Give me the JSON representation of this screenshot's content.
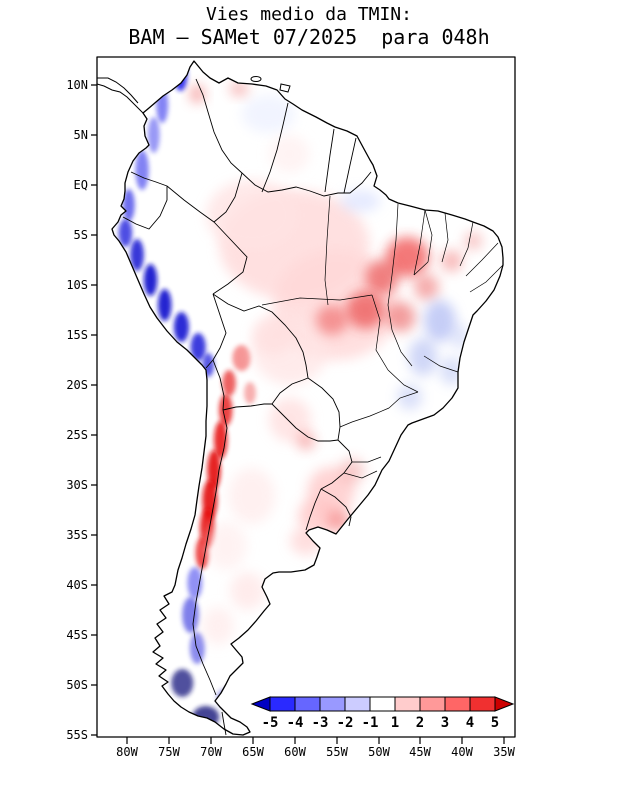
{
  "title": {
    "line1": "Vies medio da TMIN:",
    "line2": "BAM – SAMet 07/2025  para 048h"
  },
  "axes": {
    "lat_labels": [
      "10N",
      "5N",
      "EQ",
      "5S",
      "10S",
      "15S",
      "20S",
      "25S",
      "30S",
      "35S",
      "40S",
      "45S",
      "50S",
      "55S"
    ],
    "lon_labels": [
      "80W",
      "75W",
      "70W",
      "65W",
      "60W",
      "55W",
      "50W",
      "45W",
      "40W",
      "35W"
    ]
  },
  "colorbar": {
    "labels": [
      "-5",
      "-4",
      "-3",
      "-2",
      "-1",
      "1",
      "2",
      "3",
      "4",
      "5"
    ],
    "colors": [
      "#0000c3",
      "#2a2aff",
      "#6666ff",
      "#9999ff",
      "#ccccff",
      "#ffffff",
      "#ffcccc",
      "#ff9999",
      "#ff6666",
      "#f03030",
      "#cc0000"
    ]
  },
  "chart_data": {
    "type": "heatmap",
    "title": "Vies medio da TMIN:",
    "subtitle": "BAM – SAMet 07/2025  para 048h",
    "variable": "Vies medio da TMIN (mean TMIN bias)",
    "model": "BAM",
    "reference": "SAMet",
    "period": "07/2025",
    "forecast_hour": "048h",
    "region": "South America",
    "lon_range": [
      -83.6,
      -33.6
    ],
    "lat_range": [
      12.8,
      -55.2
    ],
    "x_ticks": [
      "80W",
      "75W",
      "70W",
      "65W",
      "60W",
      "55W",
      "50W",
      "45W",
      "40W",
      "35W"
    ],
    "y_ticks": [
      "10N",
      "5N",
      "EQ",
      "5S",
      "10S",
      "15S",
      "20S",
      "25S",
      "30S",
      "35S",
      "40S",
      "45S",
      "50S",
      "55S"
    ],
    "colorbar_levels": [
      -5,
      -4,
      -3,
      -2,
      -1,
      1,
      2,
      3,
      4,
      5
    ],
    "grid": false,
    "legend_position": "bottom-right inside plot",
    "summary_regions": [
      {
        "area": "Pacific coast / western Andes of Colombia-Ecuador-Peru (10N-18S)",
        "bias": "strong negative, -3 to below -5"
      },
      {
        "area": "Andes of northern-central Chile and western Argentina (18S-38S)",
        "bias": "strong positive, +3 to above +5"
      },
      {
        "area": "southern Andes and Patagonian fjords (38S-55S)",
        "bias": "negative, -2 to below -5"
      },
      {
        "area": "Amazon basin and central Brazil",
        "bias": "weak positive, 0 to +2"
      },
      {
        "area": "Maranhao/Tocantins and central-west Brazil patches",
        "bias": "positive, +2 to +4"
      },
      {
        "area": "eastern Brazil (Bahia / Minas Gerais) patches",
        "bias": "weak negative, -1 to -3"
      },
      {
        "area": "Uruguay and far southern Brazil",
        "bias": "positive, +1 to +3"
      },
      {
        "area": "Argentine lowlands",
        "bias": "near zero, 0 to +1"
      },
      {
        "area": "Venezuela and Guianas",
        "bias": "near zero with mixed weak patches"
      }
    ],
    "bias_field_blobs": [
      {
        "lon": -73.6,
        "lat": 11.0,
        "rx": 0.8,
        "ry": 1.6,
        "color": "#2222ee",
        "op": 0.9,
        "sharp": true
      },
      {
        "lon": -75.8,
        "lat": 8.0,
        "rx": 0.7,
        "ry": 1.8,
        "color": "#4343f0",
        "op": 0.65,
        "sharp": true
      },
      {
        "lon": -76.8,
        "lat": 5.0,
        "rx": 0.7,
        "ry": 1.8,
        "color": "#5555f0",
        "op": 0.6,
        "sharp": true
      },
      {
        "lon": -78.2,
        "lat": 1.5,
        "rx": 0.8,
        "ry": 2.0,
        "color": "#4040ee",
        "op": 0.65,
        "sharp": true
      },
      {
        "lon": -79.8,
        "lat": -2.0,
        "rx": 0.7,
        "ry": 1.6,
        "color": "#3030e6",
        "op": 0.7,
        "sharp": true
      },
      {
        "lon": -80.2,
        "lat": -4.8,
        "rx": 0.8,
        "ry": 1.4,
        "color": "#2020dd",
        "op": 0.8,
        "sharp": true
      },
      {
        "lon": -78.8,
        "lat": -7.0,
        "rx": 0.8,
        "ry": 1.6,
        "color": "#1515d2",
        "op": 0.85,
        "sharp": true
      },
      {
        "lon": -77.2,
        "lat": -9.5,
        "rx": 0.8,
        "ry": 1.6,
        "color": "#1111cc",
        "op": 0.9,
        "sharp": true
      },
      {
        "lon": -75.5,
        "lat": -12.0,
        "rx": 0.8,
        "ry": 1.6,
        "color": "#1111cc",
        "op": 0.9,
        "sharp": true
      },
      {
        "lon": -73.5,
        "lat": -14.2,
        "rx": 0.9,
        "ry": 1.5,
        "color": "#1515d2",
        "op": 0.9,
        "sharp": true
      },
      {
        "lon": -71.5,
        "lat": -16.2,
        "rx": 0.9,
        "ry": 1.4,
        "color": "#1a1ad8",
        "op": 0.85,
        "sharp": true
      },
      {
        "lon": -70.3,
        "lat": -18.0,
        "rx": 0.7,
        "ry": 1.2,
        "color": "#2222dd",
        "op": 0.75,
        "sharp": true
      },
      {
        "lon": -67.8,
        "lat": -19.8,
        "rx": 0.8,
        "ry": 1.3,
        "color": "#e62222",
        "op": 0.7,
        "sharp": true
      },
      {
        "lon": -68.2,
        "lat": -22.5,
        "rx": 0.8,
        "ry": 1.6,
        "color": "#e61515",
        "op": 0.8,
        "sharp": true
      },
      {
        "lon": -68.8,
        "lat": -25.5,
        "rx": 0.8,
        "ry": 1.9,
        "color": "#e60f0f",
        "op": 0.85,
        "sharp": true
      },
      {
        "lon": -69.6,
        "lat": -28.5,
        "rx": 0.8,
        "ry": 2.0,
        "color": "#e30a0a",
        "op": 0.9,
        "sharp": true
      },
      {
        "lon": -70.1,
        "lat": -31.5,
        "rx": 0.9,
        "ry": 2.0,
        "color": "#e30a0a",
        "op": 0.9,
        "sharp": true
      },
      {
        "lon": -70.4,
        "lat": -34.3,
        "rx": 0.9,
        "ry": 2.0,
        "color": "#e60d0d",
        "op": 0.88,
        "sharp": true
      },
      {
        "lon": -71.0,
        "lat": -36.8,
        "rx": 0.8,
        "ry": 1.6,
        "color": "#e81818",
        "op": 0.8,
        "sharp": true
      },
      {
        "lon": -66.3,
        "lat": -17.3,
        "rx": 1.1,
        "ry": 1.3,
        "color": "#ee4040",
        "op": 0.55,
        "sharp": true
      },
      {
        "lon": -65.3,
        "lat": -20.8,
        "rx": 0.7,
        "ry": 1.1,
        "color": "#ee5050",
        "op": 0.45,
        "sharp": true
      },
      {
        "lon": -71.9,
        "lat": -39.8,
        "rx": 0.9,
        "ry": 1.6,
        "color": "#4848ee",
        "op": 0.6,
        "sharp": true
      },
      {
        "lon": -72.4,
        "lat": -43.0,
        "rx": 1.0,
        "ry": 1.8,
        "color": "#3a3ae0",
        "op": 0.65,
        "sharp": true
      },
      {
        "lon": -71.6,
        "lat": -46.3,
        "rx": 0.9,
        "ry": 1.6,
        "color": "#4040e2",
        "op": 0.6,
        "sharp": true
      },
      {
        "lon": -73.4,
        "lat": -49.8,
        "rx": 1.3,
        "ry": 1.4,
        "color": "#16167e",
        "op": 0.75,
        "sharp": true
      },
      {
        "lon": -70.6,
        "lat": -53.2,
        "rx": 1.6,
        "ry": 1.1,
        "color": "#14147a",
        "op": 0.8,
        "sharp": true
      },
      {
        "lon": -68.4,
        "lat": -51.3,
        "rx": 0.9,
        "ry": 0.9,
        "color": "#3333cc",
        "op": 0.45,
        "sharp": true
      },
      {
        "lon": -60.0,
        "lat": -6.0,
        "rx": 9.0,
        "ry": 5.5,
        "color": "#ffdbdb",
        "op": 0.85,
        "sharp": false
      },
      {
        "lon": -65.0,
        "lat": -3.0,
        "rx": 5.5,
        "ry": 3.5,
        "color": "#ffe3e3",
        "op": 0.8,
        "sharp": false
      },
      {
        "lon": -55.0,
        "lat": -12.0,
        "rx": 7.5,
        "ry": 5.5,
        "color": "#ffd8d8",
        "op": 0.8,
        "sharp": false
      },
      {
        "lon": -60.5,
        "lat": -16.5,
        "rx": 4.5,
        "ry": 3.5,
        "color": "#ffe5e5",
        "op": 0.75,
        "sharp": false
      },
      {
        "lon": -62.5,
        "lat": -15.0,
        "rx": 2.5,
        "ry": 2.0,
        "color": "#ffdede",
        "op": 0.7,
        "sharp": false
      },
      {
        "lon": -60.5,
        "lat": -23.5,
        "rx": 2.5,
        "ry": 2.2,
        "color": "#ffdada",
        "op": 0.7,
        "sharp": false
      },
      {
        "lon": -46.5,
        "lat": -7.2,
        "rx": 2.6,
        "ry": 2.0,
        "color": "#ee3333",
        "op": 0.65,
        "sharp": false
      },
      {
        "lon": -49.5,
        "lat": -9.2,
        "rx": 2.0,
        "ry": 1.7,
        "color": "#e63c3c",
        "op": 0.6,
        "sharp": false
      },
      {
        "lon": -51.5,
        "lat": -12.5,
        "rx": 2.3,
        "ry": 1.9,
        "color": "#e63333",
        "op": 0.6,
        "sharp": false
      },
      {
        "lon": -55.5,
        "lat": -13.5,
        "rx": 1.9,
        "ry": 1.5,
        "color": "#ea4747",
        "op": 0.5,
        "sharp": false
      },
      {
        "lon": -47.2,
        "lat": -13.2,
        "rx": 1.7,
        "ry": 1.5,
        "color": "#e64242",
        "op": 0.5,
        "sharp": false
      },
      {
        "lon": -44.2,
        "lat": -10.2,
        "rx": 1.5,
        "ry": 1.3,
        "color": "#ea4a4a",
        "op": 0.45,
        "sharp": false
      },
      {
        "lon": -41.2,
        "lat": -7.6,
        "rx": 1.3,
        "ry": 1.1,
        "color": "#ee5656",
        "op": 0.4,
        "sharp": false
      },
      {
        "lon": -38.6,
        "lat": -5.6,
        "rx": 1.1,
        "ry": 0.9,
        "color": "#ee6262",
        "op": 0.35,
        "sharp": false
      },
      {
        "lon": -42.6,
        "lat": -13.6,
        "rx": 1.9,
        "ry": 2.1,
        "color": "#8c9cee",
        "op": 0.5,
        "sharp": false
      },
      {
        "lon": -44.6,
        "lat": -17.2,
        "rx": 1.7,
        "ry": 1.9,
        "color": "#96a6ee",
        "op": 0.45,
        "sharp": false
      },
      {
        "lon": -41.2,
        "lat": -18.6,
        "rx": 1.4,
        "ry": 1.4,
        "color": "#a0b0f0",
        "op": 0.4,
        "sharp": false
      },
      {
        "lon": -46.2,
        "lat": -21.2,
        "rx": 1.5,
        "ry": 1.3,
        "color": "#a4b2f0",
        "op": 0.4,
        "sharp": false
      },
      {
        "lon": -40.2,
        "lat": -15.2,
        "rx": 1.1,
        "ry": 1.3,
        "color": "#aab8f2",
        "op": 0.35,
        "sharp": false
      },
      {
        "lon": -55.6,
        "lat": -30.6,
        "rx": 2.8,
        "ry": 2.4,
        "color": "#ffc9c9",
        "op": 0.8,
        "sharp": false
      },
      {
        "lon": -57.1,
        "lat": -33.1,
        "rx": 2.4,
        "ry": 1.9,
        "color": "#ffc2c2",
        "op": 0.75,
        "sharp": false
      },
      {
        "lon": -54.6,
        "lat": -33.6,
        "rx": 1.4,
        "ry": 1.1,
        "color": "#ee5252",
        "op": 0.45,
        "sharp": false
      },
      {
        "lon": -58.6,
        "lat": -35.6,
        "rx": 1.9,
        "ry": 1.4,
        "color": "#ffd2d2",
        "op": 0.7,
        "sharp": false
      },
      {
        "lon": -53.1,
        "lat": -28.6,
        "rx": 1.5,
        "ry": 1.3,
        "color": "#f29494",
        "op": 0.45,
        "sharp": false
      },
      {
        "lon": -65.1,
        "lat": -31.1,
        "rx": 2.8,
        "ry": 2.8,
        "color": "#ffeaea",
        "op": 0.7,
        "sharp": false
      },
      {
        "lon": -68.1,
        "lat": -36.1,
        "rx": 2.4,
        "ry": 2.4,
        "color": "#ffecec",
        "op": 0.65,
        "sharp": false
      },
      {
        "lon": -65.6,
        "lat": -40.6,
        "rx": 2.1,
        "ry": 1.9,
        "color": "#ffe0e0",
        "op": 0.6,
        "sharp": false
      },
      {
        "lon": -69.1,
        "lat": -44.1,
        "rx": 1.9,
        "ry": 1.9,
        "color": "#ffe4e4",
        "op": 0.55,
        "sharp": false
      },
      {
        "lon": -63.1,
        "lat": 7.1,
        "rx": 3.2,
        "ry": 1.9,
        "color": "#e8edff",
        "op": 0.6,
        "sharp": false
      },
      {
        "lon": -66.6,
        "lat": 9.6,
        "rx": 1.1,
        "ry": 0.7,
        "color": "#ee6666",
        "op": 0.45,
        "sharp": false
      },
      {
        "lon": -71.6,
        "lat": 9.1,
        "rx": 0.9,
        "ry": 0.9,
        "color": "#ee5a5a",
        "op": 0.5,
        "sharp": false
      },
      {
        "lon": -60.6,
        "lat": 3.1,
        "rx": 2.4,
        "ry": 1.9,
        "color": "#ffe8e8",
        "op": 0.5,
        "sharp": false
      },
      {
        "lon": -52.1,
        "lat": -1.6,
        "rx": 2.4,
        "ry": 1.1,
        "color": "#ccd6ff",
        "op": 0.5,
        "sharp": false
      },
      {
        "lon": -58.6,
        "lat": -25.6,
        "rx": 1.1,
        "ry": 0.9,
        "color": "#ee5252",
        "op": 0.4,
        "sharp": false
      }
    ]
  }
}
